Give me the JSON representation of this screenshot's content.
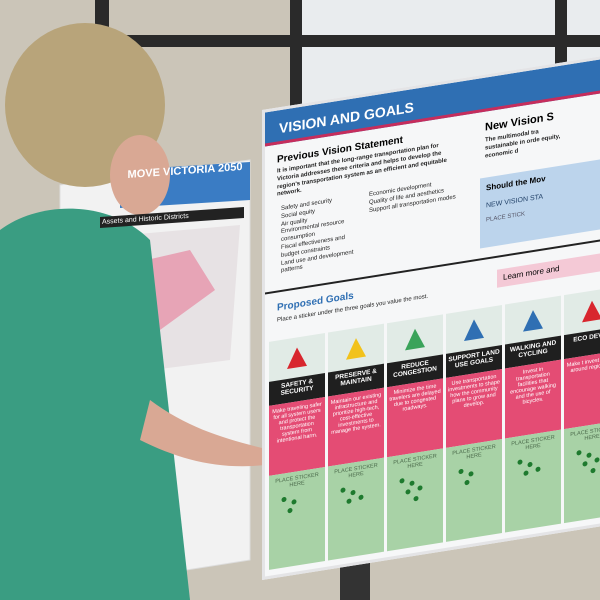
{
  "left_board": {
    "logo": "MOVE VICTORIA 2050",
    "map_title": "Assets and Historic Districts"
  },
  "board": {
    "title": "VISION AND GOALS",
    "previous": {
      "heading": "Previous Vision Statement",
      "text": "It is important that the long-range transportation plan for Victoria addresses these criteria and helps to develop the region's transportation system as an efficient and equitable network.",
      "bullets_left": [
        "Safety and security",
        "Social equity",
        "Air quality",
        "Environmental resource consumption",
        "Fiscal effectiveness and budget constraints",
        "Land use and development patterns"
      ],
      "bullets_right": [
        "Economic development",
        "Quality of life and aesthetics",
        "Support all transportation modes"
      ]
    },
    "new_vision": {
      "heading": "New Vision S",
      "text": "The multimodal tra sustainable in orde equity, economic d",
      "question": "Should the Mov",
      "statement": "NEW VISION STA",
      "sticker": "PLACE STICK"
    },
    "proposed": {
      "heading": "Proposed Goals",
      "instruction": "Place a sticker under the three goals you value the most.",
      "learn_more": "Learn more and"
    },
    "goals": [
      {
        "title": "SAFETY & SECURITY",
        "text": "Make traveling safer for all system users and protect the transportation system from intentional harm.",
        "sticker": "PLACE STICKER HERE"
      },
      {
        "title": "PRESERVE & MAINTAIN",
        "text": "Maintain our existing infrastructure and prioritize high-tech, cost-effective investments to manage the system.",
        "sticker": "PLACE STICKER HERE"
      },
      {
        "title": "REDUCE CONGESTION",
        "text": "Minimize the time travelers are delayed due to congested roadways.",
        "sticker": "PLACE STICKER HERE"
      },
      {
        "title": "SUPPORT LAND USE GOALS",
        "text": "Use transportation investments to shape how the community plans to grow and develop.",
        "sticker": "PLACE STICKER HERE"
      },
      {
        "title": "WALKING AND CYCLING",
        "text": "Invest in transportation facilities that encourage walking and the use of bicycles.",
        "sticker": "PLACE STICKER HERE"
      },
      {
        "title": "ECO DEVEL",
        "text": "Make t invest help m around region ma",
        "sticker": "PLACE STICKER HERE"
      }
    ]
  }
}
